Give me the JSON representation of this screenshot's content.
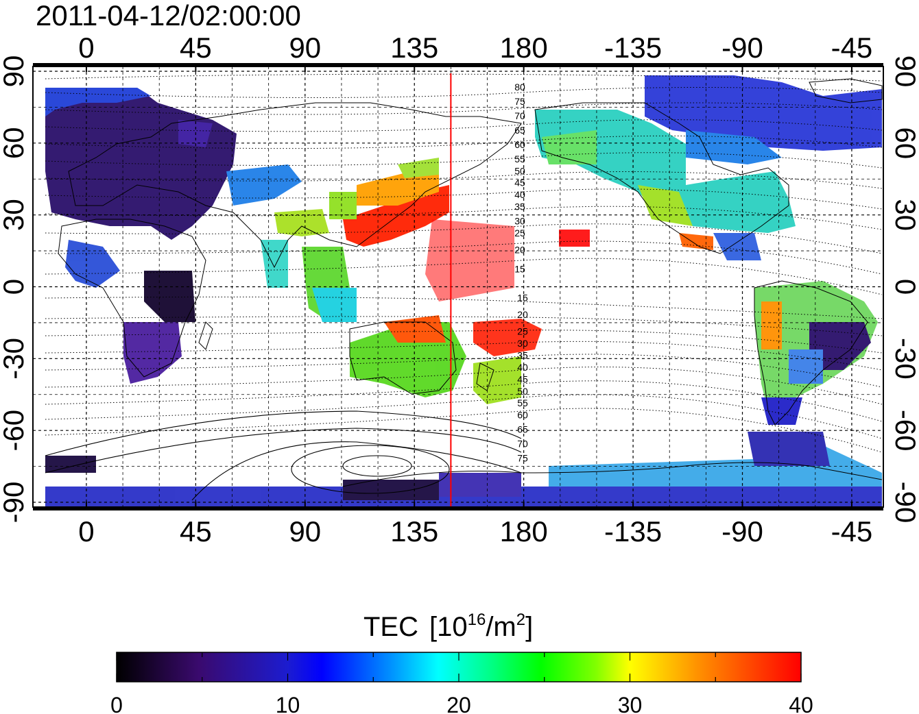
{
  "timestamp": "2011-04-12/02:00:00",
  "map": {
    "lon_labels": [
      "0",
      "45",
      "90",
      "135",
      "180",
      "-135",
      "-90",
      "-45"
    ],
    "lat_labels": [
      "90",
      "60",
      "30",
      "0",
      "-30",
      "-60",
      "-90"
    ],
    "lon_ticks": [
      0,
      45,
      90,
      135,
      180,
      225,
      270,
      315
    ],
    "lat_ticks": [
      90,
      60,
      30,
      0,
      -30,
      -60,
      -90
    ],
    "lon_range": [
      -22,
      328
    ],
    "lat_range": [
      -92,
      92
    ],
    "meridian_marker_lon": 150,
    "meridian_marker_color": "#ff0000",
    "contour_labels_north": [
      "80",
      "75",
      "70",
      "65",
      "60",
      "55",
      "50",
      "45",
      "40",
      "35",
      "30",
      "25",
      "20",
      "15"
    ],
    "contour_labels_south": [
      "15",
      "20",
      "25",
      "30",
      "35",
      "40",
      "45",
      "50",
      "55",
      "60",
      "65",
      "70",
      "75"
    ]
  },
  "colorbar": {
    "title": "TEC",
    "unit_prefix": "[10",
    "unit_exp": "16",
    "unit_mid": "/m",
    "unit_exp2": "2",
    "unit_suffix": "]",
    "min": 0,
    "max": 40,
    "tick_labels": [
      "0",
      "10",
      "20",
      "30",
      "40"
    ],
    "colors": [
      "#000000",
      "#3a0a6e",
      "#2020c8",
      "#0000ff",
      "#0090ff",
      "#00ffff",
      "#00ff80",
      "#00ff00",
      "#80ff00",
      "#ffff00",
      "#ff9000",
      "#ff0000"
    ]
  }
}
